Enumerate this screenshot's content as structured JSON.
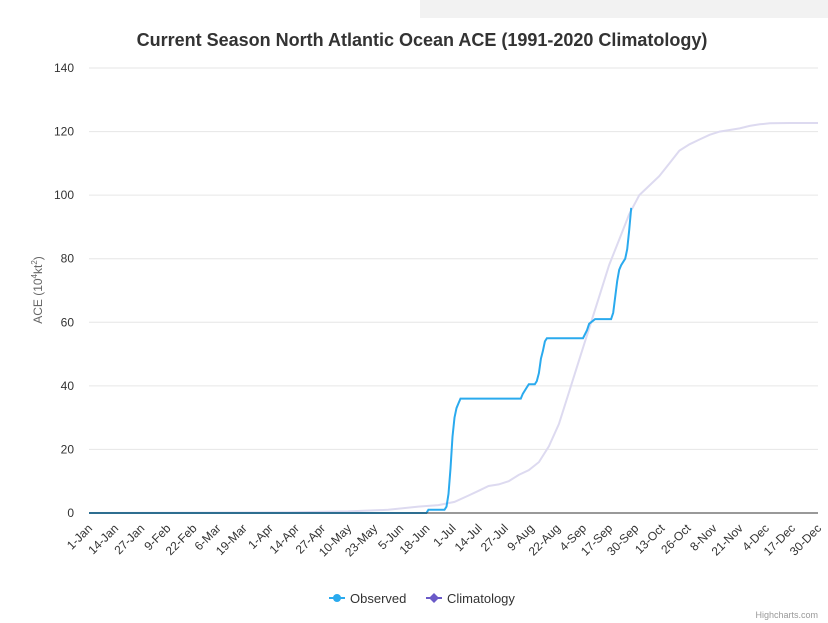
{
  "chart_data": {
    "type": "line",
    "title": "Current Season North Atlantic Ocean ACE (1991-2020 Climatology)",
    "ylabel_base": "ACE (10",
    "ylabel_sup1": "4",
    "ylabel_mid": "kt",
    "ylabel_sup2": "2",
    "ylabel_end": ")",
    "ylim": [
      0,
      140
    ],
    "yticks": [
      0,
      20,
      40,
      60,
      80,
      100,
      120,
      140
    ],
    "xlim": [
      1,
      364
    ],
    "xticks": [
      {
        "day": 1,
        "label": "1-Jan"
      },
      {
        "day": 14,
        "label": "14-Jan"
      },
      {
        "day": 27,
        "label": "27-Jan"
      },
      {
        "day": 40,
        "label": "9-Feb"
      },
      {
        "day": 53,
        "label": "22-Feb"
      },
      {
        "day": 65,
        "label": "6-Mar"
      },
      {
        "day": 78,
        "label": "19-Mar"
      },
      {
        "day": 91,
        "label": "1-Apr"
      },
      {
        "day": 104,
        "label": "14-Apr"
      },
      {
        "day": 117,
        "label": "27-Apr"
      },
      {
        "day": 130,
        "label": "10-May"
      },
      {
        "day": 143,
        "label": "23-May"
      },
      {
        "day": 156,
        "label": "5-Jun"
      },
      {
        "day": 169,
        "label": "18-Jun"
      },
      {
        "day": 182,
        "label": "1-Jul"
      },
      {
        "day": 195,
        "label": "14-Jul"
      },
      {
        "day": 208,
        "label": "27-Jul"
      },
      {
        "day": 221,
        "label": "9-Aug"
      },
      {
        "day": 234,
        "label": "22-Aug"
      },
      {
        "day": 247,
        "label": "4-Sep"
      },
      {
        "day": 260,
        "label": "17-Sep"
      },
      {
        "day": 273,
        "label": "30-Sep"
      },
      {
        "day": 286,
        "label": "13-Oct"
      },
      {
        "day": 299,
        "label": "26-Oct"
      },
      {
        "day": 312,
        "label": "8-Nov"
      },
      {
        "day": 325,
        "label": "21-Nov"
      },
      {
        "day": 338,
        "label": "4-Dec"
      },
      {
        "day": 351,
        "label": "17-Dec"
      },
      {
        "day": 364,
        "label": "30-Dec"
      }
    ],
    "grid": true,
    "legend_position": "bottom-center",
    "series": [
      {
        "name": "Observed",
        "color": "#2aaaee",
        "points": [
          [
            1,
            0
          ],
          [
            169,
            0
          ],
          [
            170,
            1
          ],
          [
            178,
            1
          ],
          [
            179,
            2
          ],
          [
            180,
            6
          ],
          [
            181,
            14
          ],
          [
            182,
            24
          ],
          [
            183,
            30
          ],
          [
            184,
            33
          ],
          [
            185,
            34.5
          ],
          [
            186,
            36
          ],
          [
            216,
            36
          ],
          [
            217,
            37.5
          ],
          [
            219,
            39.5
          ],
          [
            220,
            40.5
          ],
          [
            223,
            40.5
          ],
          [
            224,
            41.5
          ],
          [
            225,
            44
          ],
          [
            226,
            48.5
          ],
          [
            227,
            51
          ],
          [
            228,
            54
          ],
          [
            229,
            55
          ],
          [
            247,
            55
          ],
          [
            249,
            57.5
          ],
          [
            250,
            59.5
          ],
          [
            252,
            60.5
          ],
          [
            253,
            61
          ],
          [
            261,
            61
          ],
          [
            262,
            63
          ],
          [
            263,
            68
          ],
          [
            264,
            73
          ],
          [
            265,
            76.5
          ],
          [
            266,
            78
          ],
          [
            268,
            80
          ],
          [
            269,
            83
          ],
          [
            270,
            89
          ],
          [
            271,
            96
          ]
        ]
      },
      {
        "name": "Climatology",
        "color": "#6a5ac8",
        "display_color": "#dddaf0",
        "points": [
          [
            1,
            0
          ],
          [
            100,
            0.2
          ],
          [
            130,
            0.5
          ],
          [
            150,
            1
          ],
          [
            165,
            2
          ],
          [
            175,
            2.5
          ],
          [
            183,
            3.5
          ],
          [
            190,
            5.5
          ],
          [
            195,
            7
          ],
          [
            200,
            8.5
          ],
          [
            205,
            9
          ],
          [
            210,
            10
          ],
          [
            215,
            12
          ],
          [
            220,
            13.5
          ],
          [
            225,
            16
          ],
          [
            230,
            21
          ],
          [
            235,
            28
          ],
          [
            240,
            38
          ],
          [
            245,
            48
          ],
          [
            250,
            58
          ],
          [
            255,
            68
          ],
          [
            260,
            78
          ],
          [
            265,
            86
          ],
          [
            270,
            94
          ],
          [
            275,
            100
          ],
          [
            280,
            103
          ],
          [
            285,
            106
          ],
          [
            290,
            110
          ],
          [
            295,
            114
          ],
          [
            300,
            116
          ],
          [
            305,
            117.5
          ],
          [
            310,
            119
          ],
          [
            315,
            120
          ],
          [
            320,
            120.5
          ],
          [
            325,
            121
          ],
          [
            330,
            121.8
          ],
          [
            335,
            122.3
          ],
          [
            340,
            122.6
          ],
          [
            350,
            122.7
          ],
          [
            364,
            122.7
          ]
        ]
      }
    ]
  },
  "credits": "Highcharts.com"
}
